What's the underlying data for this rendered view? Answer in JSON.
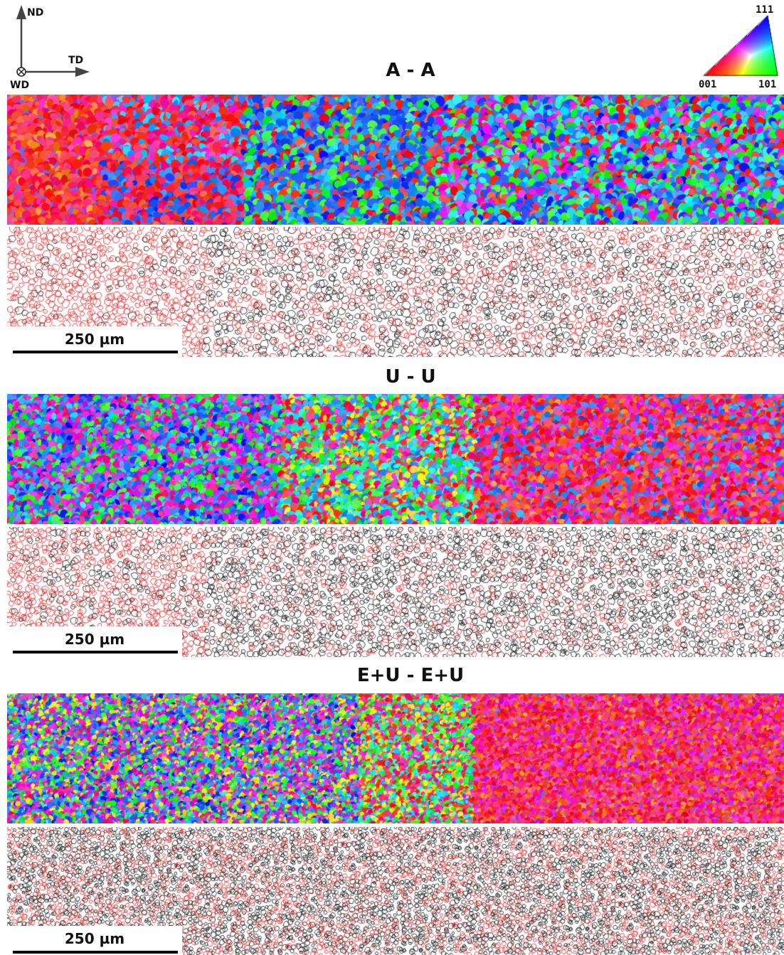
{
  "axes": {
    "nd": "ND",
    "td": "TD",
    "wd": "WD"
  },
  "ipf_legend": {
    "top": "111",
    "bottom_left": "001",
    "bottom_right": "101"
  },
  "panels": [
    {
      "title": "A - A",
      "scale": "250 µm"
    },
    {
      "title": "U - U",
      "scale": "250 µm"
    },
    {
      "title": "E+U - E+U",
      "scale": "250 µm"
    }
  ]
}
